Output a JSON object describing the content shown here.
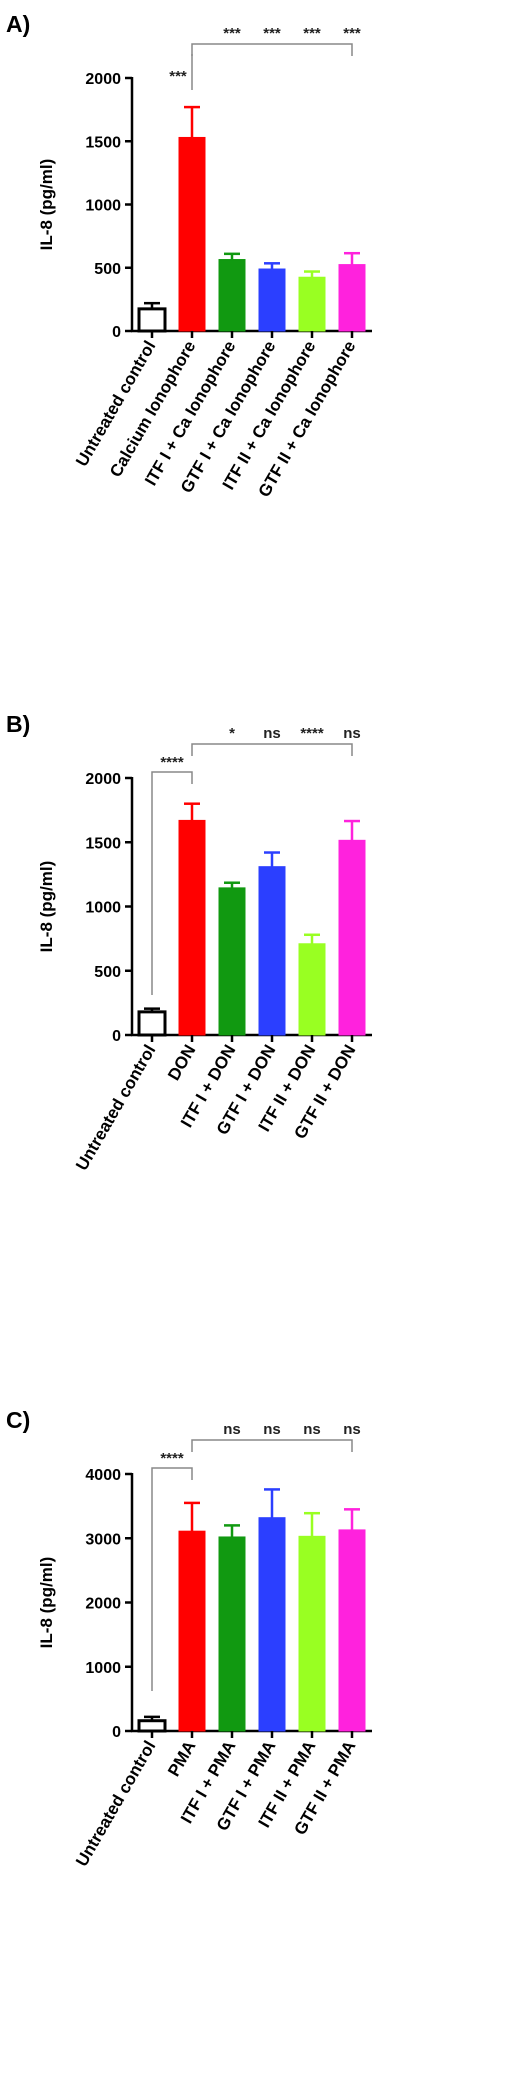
{
  "chart_data": [
    {
      "panel_label": "A)",
      "type": "bar",
      "ylabel": "IL-8 (pg/ml)",
      "ylim": [
        0,
        2000
      ],
      "yticks": [
        "0",
        "500",
        "1000",
        "1500",
        "2000"
      ],
      "categories": [
        "Untreated control",
        "Calcium Ionophore",
        "ITF I + Ca Ionophore",
        "GTF I + Ca Ionophore",
        "ITF II + Ca Ionophore",
        "GTF II + Ca Ionophore"
      ],
      "values": [
        175,
        1530,
        565,
        490,
        425,
        525
      ],
      "errors": [
        45,
        240,
        45,
        45,
        45,
        90
      ],
      "colors": [
        "#ffffff",
        "#ff0000",
        "#119911",
        "#2b3fff",
        "#99ff22",
        "#ff22dd"
      ],
      "significance": {
        "control_vs_treatment": {
          "from": 0,
          "to": 1,
          "label": "***"
        },
        "treatment_vs_groups": {
          "from": 1,
          "to": 5,
          "labels": [
            "***",
            "***",
            "***",
            "***"
          ]
        }
      }
    },
    {
      "panel_label": "B)",
      "type": "bar",
      "ylabel": "IL-8 (pg/ml)",
      "ylim": [
        0,
        2000
      ],
      "yticks": [
        "0",
        "500",
        "1000",
        "1500",
        "2000"
      ],
      "categories": [
        "Untreated control",
        "DON",
        "ITF I + DON",
        "GTF I + DON",
        "ITF II + DON",
        "GTF II + DON"
      ],
      "values": [
        180,
        1670,
        1145,
        1310,
        710,
        1515
      ],
      "errors": [
        25,
        130,
        40,
        110,
        70,
        150
      ],
      "colors": [
        "#ffffff",
        "#ff0000",
        "#119911",
        "#2b3fff",
        "#99ff22",
        "#ff22dd"
      ],
      "significance": {
        "control_vs_treatment": {
          "from": 0,
          "to": 1,
          "label": "****"
        },
        "treatment_vs_groups": {
          "from": 1,
          "to": 5,
          "labels": [
            "*",
            "ns",
            "****",
            "ns"
          ]
        }
      }
    },
    {
      "panel_label": "C)",
      "type": "bar",
      "ylabel": "IL-8 (pg/ml)",
      "ylim": [
        0,
        4000
      ],
      "yticks": [
        "0",
        "1000",
        "2000",
        "3000",
        "4000"
      ],
      "categories": [
        "Untreated control",
        "PMA",
        "ITF I + PMA",
        "GTF I + PMA",
        "ITF II + PMA",
        "GTF II + PMA"
      ],
      "values": [
        160,
        3110,
        3020,
        3320,
        3030,
        3130
      ],
      "errors": [
        60,
        440,
        180,
        440,
        360,
        320
      ],
      "colors": [
        "#ffffff",
        "#ff0000",
        "#119911",
        "#2b3fff",
        "#99ff22",
        "#ff22dd"
      ],
      "significance": {
        "control_vs_treatment": {
          "from": 0,
          "to": 1,
          "label": "****"
        },
        "treatment_vs_groups": {
          "from": 1,
          "to": 5,
          "labels": [
            "ns",
            "ns",
            "ns",
            "ns"
          ]
        }
      }
    }
  ]
}
